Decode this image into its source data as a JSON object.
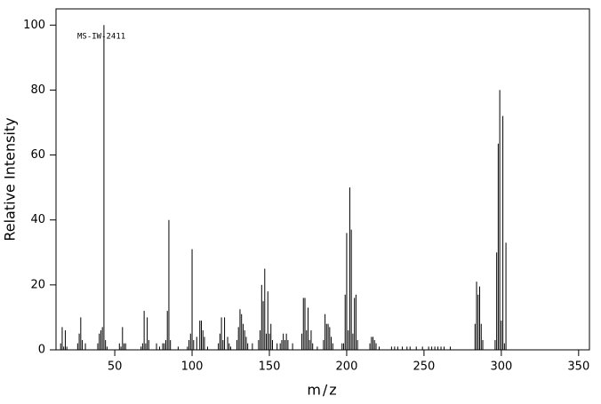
{
  "chart_data": {
    "type": "stem",
    "annotation": "MS-IW-2411",
    "xlabel": "m/z",
    "ylabel": "Relative Intensity",
    "color": "#000000",
    "xlim": [
      12,
      357
    ],
    "ylim": [
      0,
      105
    ],
    "xticks": [
      50,
      100,
      150,
      200,
      250,
      300,
      350
    ],
    "yticks": [
      0,
      20,
      40,
      60,
      80,
      100
    ],
    "x": [
      15,
      16,
      17,
      18,
      19,
      26,
      27,
      28,
      29,
      31,
      39,
      40,
      41,
      42,
      43,
      44,
      45,
      53,
      54,
      55,
      56,
      57,
      67,
      68,
      69,
      70,
      71,
      72,
      77,
      79,
      81,
      82,
      83,
      84,
      85,
      86,
      91,
      97,
      98,
      99,
      100,
      101,
      103,
      105,
      106,
      107,
      108,
      110,
      117,
      118,
      119,
      120,
      121,
      123,
      124,
      125,
      129,
      130,
      131,
      132,
      133,
      134,
      135,
      136,
      139,
      143,
      144,
      145,
      146,
      147,
      148,
      149,
      150,
      151,
      152,
      155,
      157,
      158,
      159,
      160,
      161,
      162,
      165,
      171,
      172,
      173,
      174,
      175,
      176,
      177,
      178,
      181,
      185,
      186,
      187,
      188,
      189,
      190,
      191,
      197,
      198,
      199,
      200,
      201,
      202,
      203,
      204,
      205,
      206,
      207,
      215,
      216,
      217,
      218,
      219,
      221,
      229,
      231,
      233,
      236,
      239,
      241,
      245,
      249,
      253,
      255,
      257,
      259,
      261,
      263,
      267,
      283,
      284,
      285,
      286,
      287,
      288,
      296,
      297,
      298,
      299,
      300,
      301,
      302,
      303
    ],
    "values": [
      2,
      7,
      1,
      6,
      1,
      2,
      5,
      10,
      3,
      2,
      2,
      5,
      6,
      7,
      100,
      3,
      1,
      2,
      1,
      7,
      2,
      2,
      1,
      2,
      12,
      2,
      10,
      3,
      2,
      1,
      2,
      2,
      3,
      12,
      40,
      3,
      1,
      1,
      3,
      5,
      31,
      3,
      4,
      9,
      9,
      6,
      4,
      1,
      2,
      5,
      10,
      3,
      10,
      4,
      2,
      1,
      3,
      7,
      12.5,
      11,
      8,
      6,
      4,
      2,
      2,
      3,
      6,
      20,
      15,
      25,
      5,
      18,
      5,
      8,
      3,
      2,
      2,
      3,
      5,
      3,
      5,
      3,
      2,
      5,
      16,
      16,
      6,
      13,
      3,
      6,
      2,
      1,
      3,
      11,
      8,
      8,
      7,
      4,
      2,
      2,
      2,
      17,
      36,
      6,
      50,
      37,
      5,
      16,
      17,
      3,
      2,
      4,
      4,
      3,
      2,
      1,
      1,
      1,
      1,
      1,
      1,
      1,
      1,
      1,
      1,
      1,
      1,
      1,
      1,
      1,
      1,
      8,
      21,
      17,
      19.5,
      8,
      3,
      3,
      30,
      63.5,
      80,
      9,
      72,
      2,
      33
    ]
  }
}
